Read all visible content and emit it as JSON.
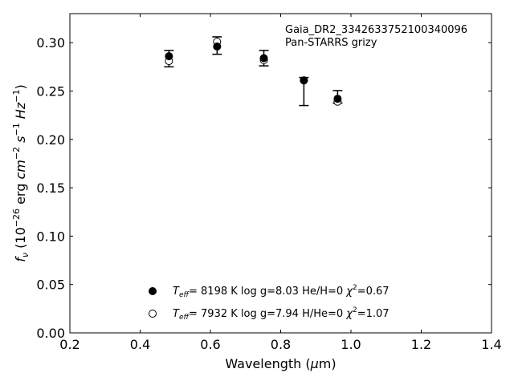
{
  "chart_data": {
    "type": "scatter",
    "xlabel": "Wavelength (μm)",
    "ylabel": "f_ν (10^-26 erg cm^-2 s^-1 Hz^-1)",
    "xlim": [
      0.2,
      1.4
    ],
    "ylim": [
      0.0,
      0.33
    ],
    "x_ticks": [
      "0.2",
      "0.4",
      "0.6",
      "0.8",
      "1.0",
      "1.2",
      "1.4"
    ],
    "y_ticks": [
      "0.00",
      "0.05",
      "0.10",
      "0.15",
      "0.20",
      "0.25",
      "0.30"
    ],
    "x_tick_values": [
      0.2,
      0.4,
      0.6,
      0.8,
      1.0,
      1.2,
      1.4
    ],
    "y_tick_values": [
      0.0,
      0.05,
      0.1,
      0.15,
      0.2,
      0.25,
      0.3
    ],
    "annotation_lines": [
      "Gaia_DR2_3342633752100340096",
      "Pan-STARRS grizy"
    ],
    "legend_placement": "bottom-center",
    "grid": false,
    "observed": {
      "x": [
        0.482,
        0.619,
        0.752,
        0.866,
        0.962
      ],
      "y": [
        0.2835,
        0.297,
        0.284,
        0.2495,
        0.244
      ],
      "yerr": [
        0.0085,
        0.009,
        0.008,
        0.0145,
        0.0065
      ]
    },
    "series": [
      {
        "name": "T_eff= 8198 K log g=8.03 He/H=0 χ²=0.67",
        "marker": "filled-circle",
        "x": [
          0.482,
          0.619,
          0.752,
          0.866,
          0.962
        ],
        "y": [
          0.286,
          0.296,
          0.284,
          0.261,
          0.242
        ]
      },
      {
        "name": "T_eff= 7932 K log g=7.94 H/He=0 χ²=1.07",
        "marker": "open-circle",
        "x": [
          0.482,
          0.619,
          0.752,
          0.866,
          0.962
        ],
        "y": [
          0.281,
          0.301,
          0.282,
          0.261,
          0.239
        ]
      }
    ]
  }
}
